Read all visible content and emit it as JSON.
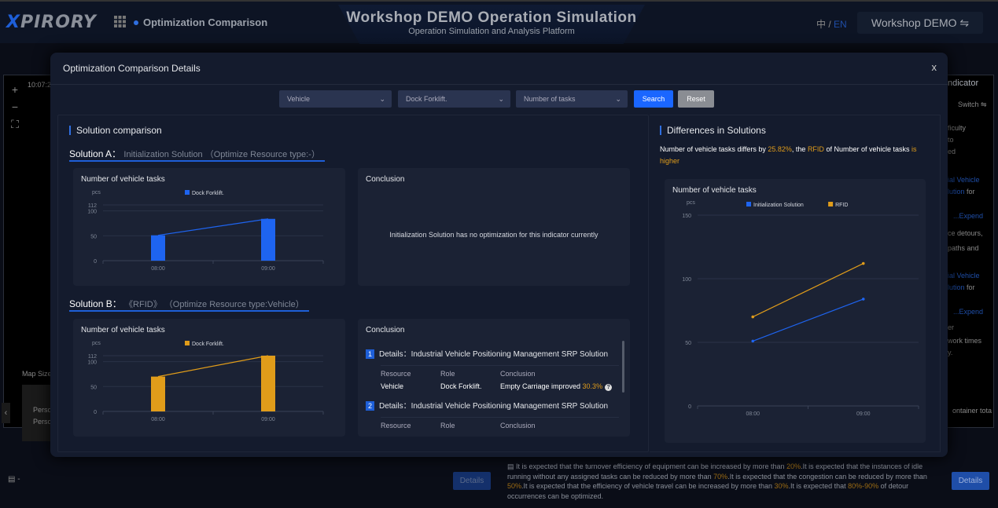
{
  "header": {
    "logo": "XPIRORY",
    "breadcrumb": "Optimization Comparison",
    "title": "Workshop DEMO Operation Simulation",
    "subtitle": "Operation Simulation and Analysis Platform",
    "lang_zh": "中",
    "lang_sep": " / ",
    "lang_en": "EN",
    "workspace": "Workshop DEMO ⇋"
  },
  "background": {
    "time": "10:07:2",
    "zoom_in": "+",
    "zoom_out": "−",
    "fit": "⛶",
    "map_size": "Map Size",
    "person1": "Perso",
    "person2": "Perso",
    "left_arrow": "‹",
    "right_panel": {
      "header": "ndicator",
      "switch": "Switch ⇋",
      "lines": [
        "ficulty",
        "to",
        "ed",
        "ial Vehicle",
        "lution for",
        "...Expend",
        "ce detours,",
        "paths and",
        "ial Vehicle",
        "lution for",
        "...Expend",
        "er",
        "work times",
        "y.",
        "ontainer tota"
      ]
    },
    "bottom_left": "-",
    "details_btn": "Details",
    "details_btn2": "Details",
    "bottom_text": [
      {
        "t": "It is expected that the turnover efficiency of equipment can be increased by more than "
      },
      {
        "t": "20%",
        "h": true
      },
      {
        "t": ".It is expected that the instances of idle running without any assigned tasks can be reduced by more than "
      },
      {
        "t": "70%",
        "h": true
      },
      {
        "t": ".It is expected that the congestion can be reduced by more than "
      },
      {
        "t": "50%",
        "h": true
      },
      {
        "t": ".It is expected that the efficiency of vehicle travel can be increased by more than "
      },
      {
        "t": "30%",
        "h": true
      },
      {
        "t": ".It is expected that "
      },
      {
        "t": "80%-90%",
        "h": true
      },
      {
        "t": " of detour occurrences can be optimized."
      }
    ]
  },
  "modal": {
    "title": "Optimization Comparison Details",
    "close": "x",
    "filters": [
      {
        "value": "Vehicle"
      },
      {
        "value": "Dock Forklift."
      },
      {
        "value": "Number of tasks"
      }
    ],
    "search": "Search",
    "reset": "Reset",
    "left": {
      "section": "Solution comparison",
      "solA": {
        "label": "Solution A：",
        "name": "Initialization Solution （Optimize Resource type:-）",
        "chart_title": "Number of vehicle tasks",
        "conclusion_title": "Conclusion",
        "conclusion": "Initialization Solution has no optimization for this indicator currently"
      },
      "solB": {
        "label": "Solution B：",
        "name": "《RFID》 （Optimize Resource type:Vehicle）",
        "chart_title": "Number of vehicle tasks",
        "conclusion_title": "Conclusion",
        "items": [
          {
            "n": "1",
            "title": "Details：Industrial Vehicle Positioning Management SRP Solution",
            "cols": [
              "Resource",
              "Role",
              "Conclusion"
            ],
            "resource": "Vehicle",
            "role": "Dock Forklift.",
            "text": "Empty Carriage improved ",
            "value": "30.3%"
          },
          {
            "n": "2",
            "title": "Details：Industrial Vehicle Positioning Management SRP Solution",
            "cols": [
              "Resource",
              "Role",
              "Conclusion"
            ]
          }
        ]
      }
    },
    "right": {
      "section": "Differences in Solutions",
      "diff": {
        "p1": "Number of vehicle tasks differs by ",
        "pct": "25.82%",
        "p2": ", the ",
        "name": "RFID",
        "p3": " of Number of vehicle tasks ",
        "p4": "is higher"
      },
      "chart_title": "Number of vehicle tasks"
    }
  },
  "colors": {
    "blue": "#1e64f0",
    "orange": "#e09c1a"
  },
  "chart_data": [
    {
      "type": "bar+line",
      "title": "Number of vehicle tasks",
      "ylabel": "pcs",
      "categories": [
        "08:00",
        "09:00"
      ],
      "yticks": [
        0,
        50,
        100,
        112
      ],
      "ylim": [
        0,
        112
      ],
      "series": [
        {
          "name": "Dock Forklift.",
          "values": [
            51,
            84
          ],
          "color": "#1e64f0"
        }
      ],
      "grid": true,
      "legend": "top"
    },
    {
      "type": "bar+line",
      "title": "Number of vehicle tasks",
      "ylabel": "pcs",
      "categories": [
        "08:00",
        "09:00"
      ],
      "yticks": [
        0,
        50,
        100,
        112
      ],
      "ylim": [
        0,
        112
      ],
      "series": [
        {
          "name": "Dock Forklift.",
          "values": [
            70,
            112
          ],
          "color": "#e09c1a"
        }
      ],
      "grid": true,
      "legend": "top"
    },
    {
      "type": "line",
      "title": "Number of vehicle tasks",
      "ylabel": "pcs",
      "categories": [
        "08:00",
        "09:00"
      ],
      "yticks": [
        0,
        50,
        100,
        150
      ],
      "ylim": [
        0,
        150
      ],
      "series": [
        {
          "name": "Initialization Solution",
          "values": [
            51,
            84
          ],
          "color": "#1e64f0"
        },
        {
          "name": "RFID",
          "values": [
            70,
            112
          ],
          "color": "#e09c1a"
        }
      ],
      "grid": true,
      "legend": "top"
    }
  ]
}
